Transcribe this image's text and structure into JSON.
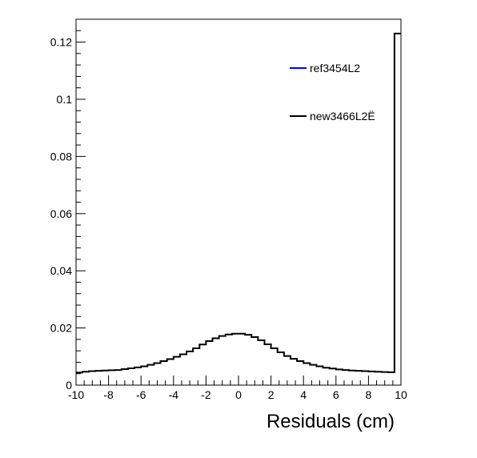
{
  "chart_data": {
    "type": "line",
    "step": true,
    "xlabel": "Residuals (cm)",
    "ylabel": "",
    "xlim": [
      -10,
      10
    ],
    "ylim": [
      0,
      0.128
    ],
    "x_ticks": [
      -10,
      -8,
      -6,
      -4,
      -2,
      0,
      2,
      4,
      6,
      8,
      10
    ],
    "x_tick_labels": [
      "-10",
      "-8",
      "-6",
      "-4",
      "-2",
      "0",
      "2",
      "4",
      "6",
      "8",
      "10"
    ],
    "y_ticks": [
      0,
      0.02,
      0.04,
      0.06,
      0.08,
      0.1,
      0.12
    ],
    "y_tick_labels": [
      "0",
      "0.02",
      "0.04",
      "0.06",
      "0.08",
      "0.1",
      "0.12"
    ],
    "legend_position": "top-right",
    "grid": false,
    "series": [
      {
        "name": "ref3454L2",
        "color": "#0000ff",
        "draw": false,
        "x": [],
        "y": []
      },
      {
        "name": "new3466L2Ë",
        "color": "#000000",
        "draw": true,
        "x": [
          -10.0,
          -9.6,
          -9.2,
          -8.8,
          -8.4,
          -8.0,
          -7.6,
          -7.2,
          -6.8,
          -6.4,
          -6.0,
          -5.6,
          -5.2,
          -4.8,
          -4.4,
          -4.0,
          -3.6,
          -3.2,
          -2.8,
          -2.4,
          -2.0,
          -1.6,
          -1.2,
          -0.8,
          -0.4,
          0.0,
          0.4,
          0.8,
          1.2,
          1.6,
          2.0,
          2.4,
          2.8,
          3.2,
          3.6,
          4.0,
          4.4,
          4.8,
          5.2,
          5.6,
          6.0,
          6.4,
          6.8,
          7.2,
          7.6,
          8.0,
          8.4,
          8.8,
          9.2,
          9.6
        ],
        "y": [
          0.0044,
          0.0047,
          0.0049,
          0.005,
          0.0051,
          0.0052,
          0.0053,
          0.0056,
          0.0059,
          0.0062,
          0.0066,
          0.0071,
          0.0077,
          0.0084,
          0.0091,
          0.0099,
          0.0108,
          0.0118,
          0.0129,
          0.0142,
          0.0154,
          0.0164,
          0.0172,
          0.0177,
          0.018,
          0.018,
          0.0176,
          0.0168,
          0.0157,
          0.0143,
          0.0129,
          0.0115,
          0.0102,
          0.0092,
          0.0084,
          0.0077,
          0.0071,
          0.0066,
          0.0061,
          0.0058,
          0.0055,
          0.0053,
          0.0051,
          0.005,
          0.0049,
          0.0048,
          0.0047,
          0.0046,
          0.0045,
          0.123
        ]
      }
    ]
  }
}
